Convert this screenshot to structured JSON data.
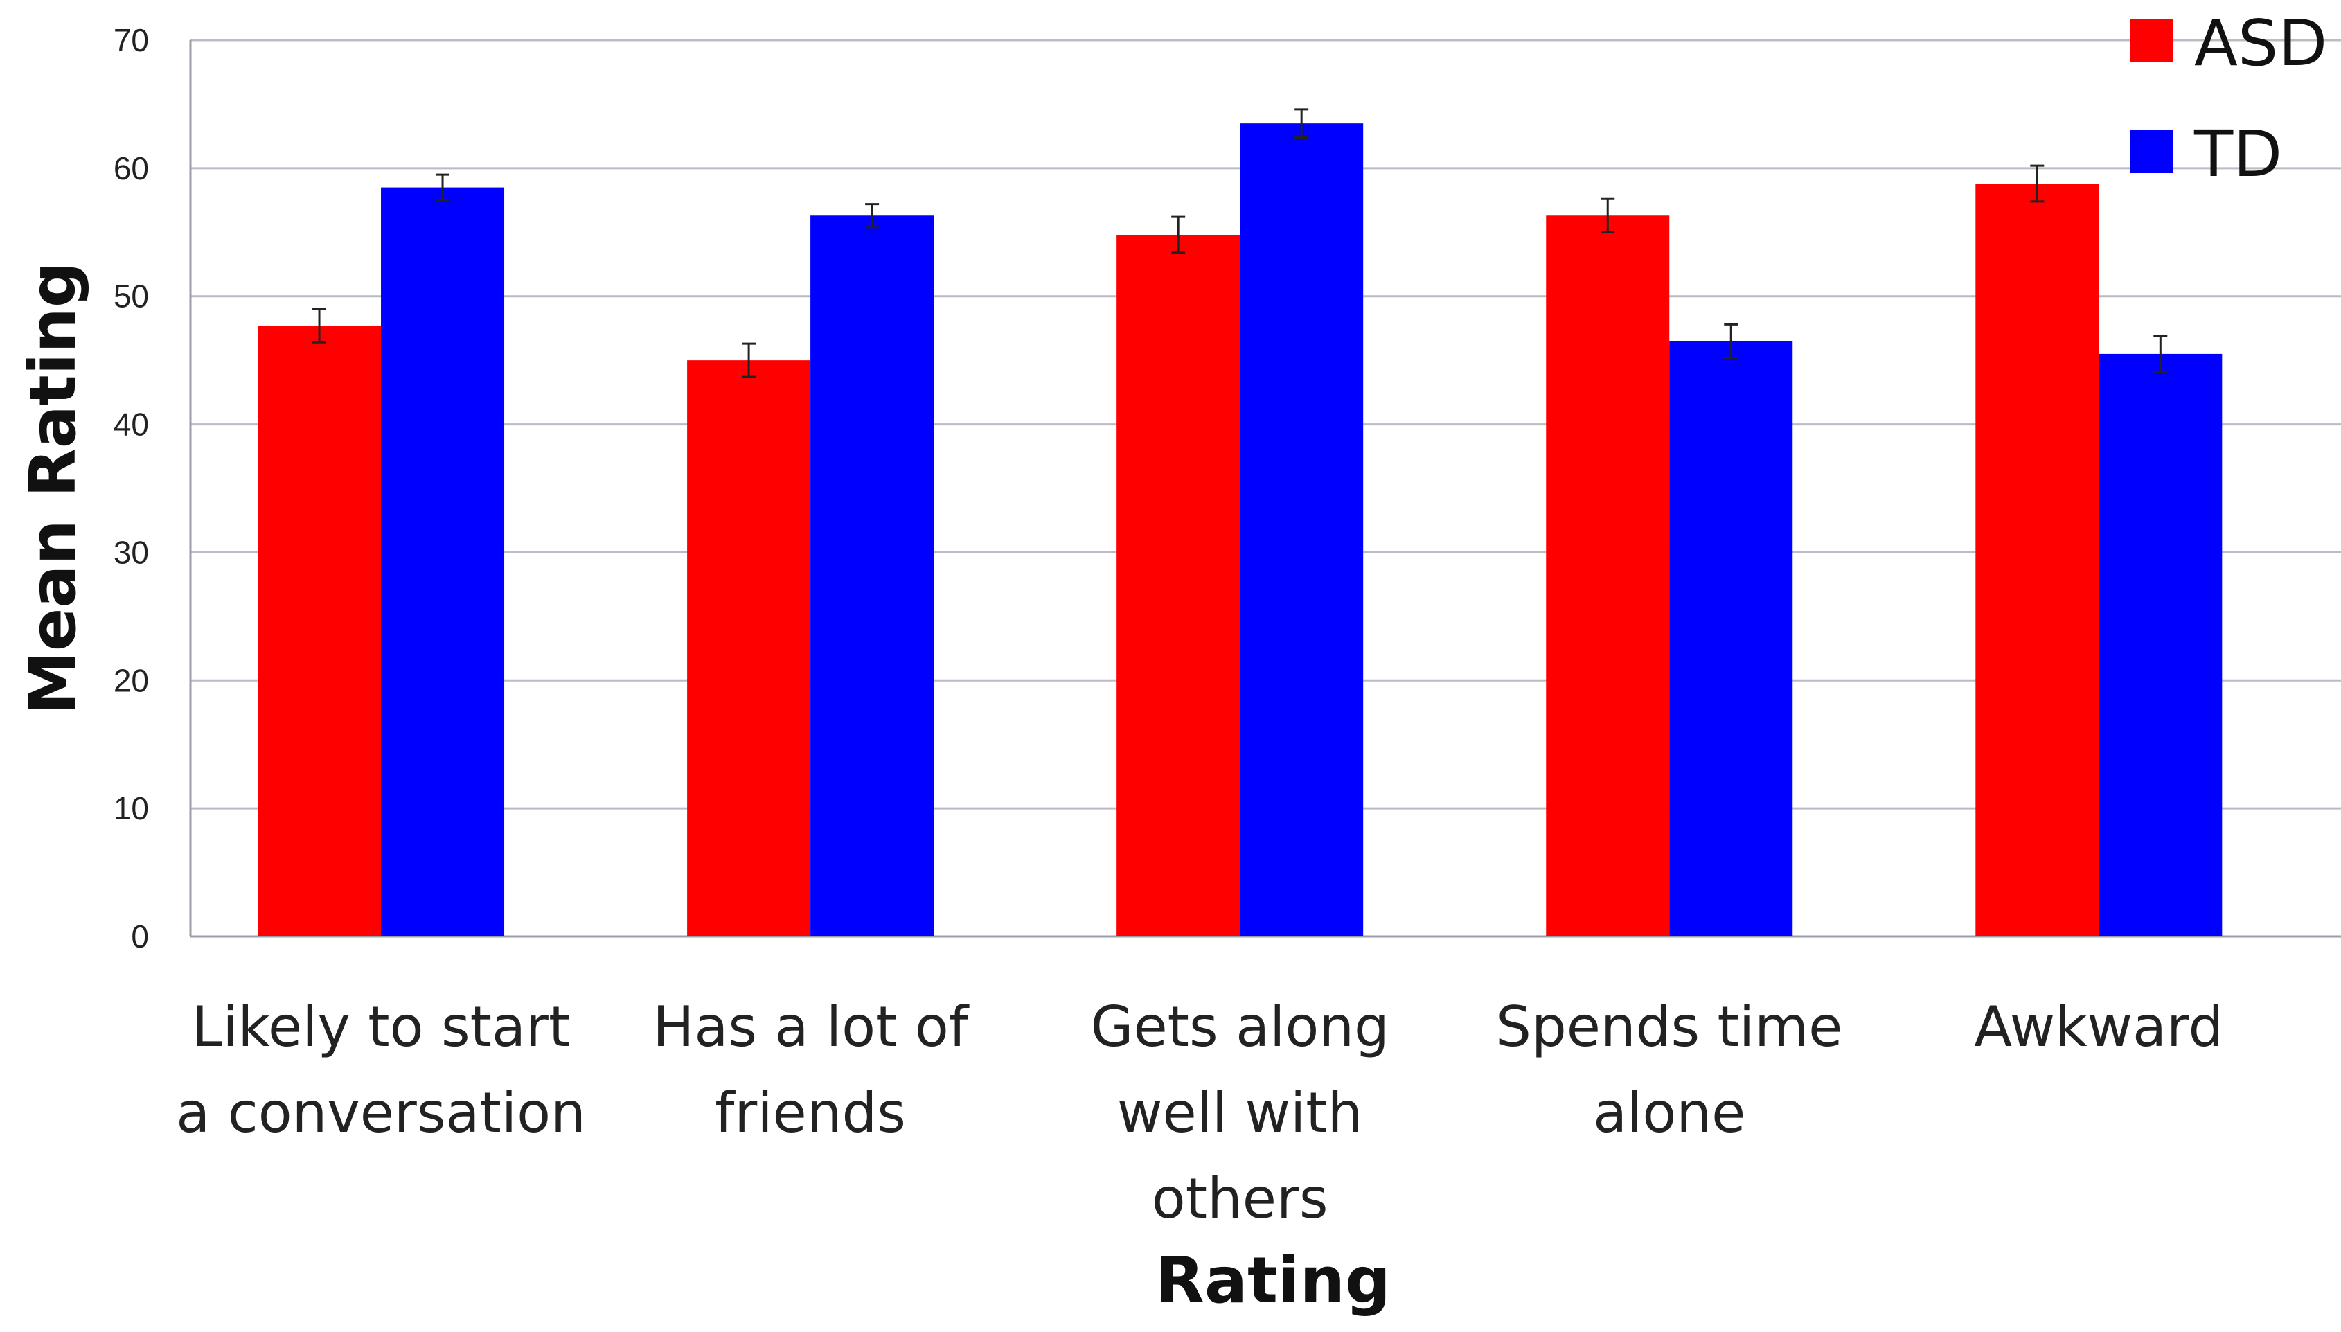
{
  "chart_data": {
    "type": "bar",
    "title": "",
    "xlabel": "Rating",
    "ylabel": "Mean Rating",
    "ylim": [
      0,
      70
    ],
    "yticks": [
      0,
      10,
      20,
      30,
      40,
      50,
      60,
      70
    ],
    "grid": true,
    "legend_position": "top-right",
    "categories": [
      [
        "Likely to start",
        "a conversation"
      ],
      [
        "Has a lot of",
        "friends"
      ],
      [
        "Gets along",
        "well with",
        "others"
      ],
      [
        "Spends time",
        "alone"
      ],
      [
        "Awkward"
      ]
    ],
    "series": [
      {
        "name": "ASD",
        "color": "#ff0000",
        "values": [
          47.7,
          45.0,
          54.8,
          56.3,
          58.8
        ],
        "errors": [
          1.3,
          1.3,
          1.4,
          1.3,
          1.4
        ]
      },
      {
        "name": "TD",
        "color": "#0000ff",
        "values": [
          58.5,
          56.3,
          63.5,
          46.5,
          45.5
        ],
        "errors": [
          1.0,
          0.9,
          1.1,
          1.3,
          1.4
        ]
      }
    ]
  }
}
